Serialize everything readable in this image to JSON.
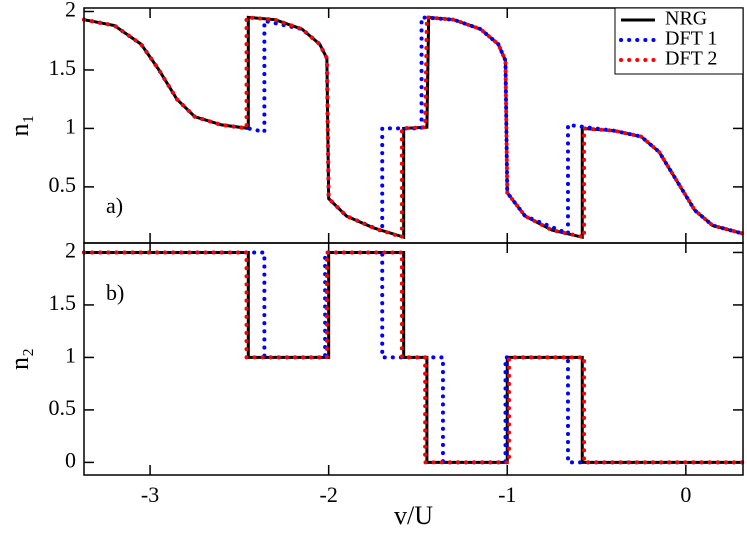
{
  "chart_data": [
    {
      "type": "line",
      "y_label": "n₁",
      "annotation": "a)",
      "legend": "upper right",
      "xlim": [
        -3.37,
        0.32
      ],
      "ylim": [
        0.02,
        2.03
      ],
      "yticks": [
        0.5,
        1,
        1.5,
        2
      ],
      "series": [
        {
          "name": "NRG",
          "color": "#000000",
          "style": "solid",
          "x": [
            -3.37,
            -3.2,
            -3.05,
            -2.95,
            -2.85,
            -2.75,
            -2.6,
            -2.45,
            -2.45,
            -2.3,
            -2.15,
            -2.05,
            -2.01,
            -2.0,
            -1.9,
            -1.75,
            -1.58,
            -1.58,
            -1.45,
            -1.44,
            -1.3,
            -1.15,
            -1.05,
            -1.01,
            -1.0,
            -0.9,
            -0.75,
            -0.58,
            -0.58,
            -0.4,
            -0.25,
            -0.15,
            -0.05,
            0.05,
            0.15,
            0.32
          ],
          "values": [
            1.93,
            1.88,
            1.72,
            1.5,
            1.25,
            1.1,
            1.03,
            1.0,
            1.95,
            1.93,
            1.85,
            1.72,
            1.6,
            0.4,
            0.25,
            0.15,
            0.07,
            1.0,
            1.01,
            1.95,
            1.93,
            1.85,
            1.72,
            1.58,
            0.45,
            0.25,
            0.13,
            0.07,
            1.0,
            0.98,
            0.93,
            0.8,
            0.55,
            0.3,
            0.17,
            0.1
          ]
        },
        {
          "name": "DFT 1",
          "color": "#0000ff",
          "style": "dotted",
          "x": [
            -3.37,
            -3.2,
            -3.05,
            -2.95,
            -2.85,
            -2.75,
            -2.6,
            -2.45,
            -2.36,
            -2.36,
            -2.15,
            -2.05,
            -2.01,
            -2.0,
            -1.9,
            -1.7,
            -1.7,
            -1.48,
            -1.48,
            -1.3,
            -1.15,
            -1.05,
            -1.01,
            -1.0,
            -0.9,
            -0.66,
            -0.66,
            -0.4,
            -0.25,
            -0.15,
            -0.05,
            0.05,
            0.15,
            0.32
          ],
          "values": [
            1.93,
            1.88,
            1.72,
            1.5,
            1.25,
            1.1,
            1.03,
            1.0,
            0.97,
            1.92,
            1.85,
            1.72,
            1.6,
            0.4,
            0.25,
            0.12,
            1.0,
            1.0,
            1.95,
            1.93,
            1.85,
            1.72,
            1.58,
            0.45,
            0.25,
            0.1,
            1.03,
            0.98,
            0.93,
            0.8,
            0.55,
            0.3,
            0.17,
            0.1
          ]
        },
        {
          "name": "DFT 2",
          "color": "#ff0000",
          "style": "dotted",
          "x": [
            -3.37,
            -3.2,
            -3.05,
            -2.95,
            -2.85,
            -2.75,
            -2.6,
            -2.46,
            -2.46,
            -2.3,
            -2.15,
            -2.05,
            -2.01,
            -2.0,
            -1.9,
            -1.75,
            -1.59,
            -1.59,
            -1.46,
            -1.45,
            -1.3,
            -1.15,
            -1.05,
            -1.01,
            -1.0,
            -0.9,
            -0.75,
            -0.57,
            -0.57,
            -0.4,
            -0.25,
            -0.15,
            -0.05,
            0.05,
            0.15,
            0.32
          ],
          "values": [
            1.93,
            1.88,
            1.72,
            1.5,
            1.25,
            1.1,
            1.03,
            1.0,
            1.95,
            1.93,
            1.85,
            1.72,
            1.6,
            0.4,
            0.25,
            0.15,
            0.07,
            1.0,
            1.01,
            1.95,
            1.93,
            1.85,
            1.72,
            1.58,
            0.45,
            0.25,
            0.13,
            0.07,
            1.0,
            0.98,
            0.93,
            0.8,
            0.55,
            0.3,
            0.17,
            0.1
          ]
        }
      ]
    },
    {
      "type": "line",
      "y_label": "n₂",
      "x_label": "v/U",
      "annotation": "b)",
      "xlim": [
        -3.37,
        0.32
      ],
      "ylim": [
        -0.12,
        2.09
      ],
      "xticks": [
        -3,
        -2,
        -1,
        0
      ],
      "yticks": [
        0,
        0.5,
        1,
        1.5,
        2
      ],
      "series": [
        {
          "color": "#000000",
          "style": "solid",
          "x": [
            -3.37,
            -2.45,
            -2.45,
            -2.0,
            -2.0,
            -1.58,
            -1.58,
            -1.45,
            -1.45,
            -1.0,
            -1.0,
            -0.58,
            -0.58,
            0.32
          ],
          "values": [
            2,
            2,
            1,
            1,
            2,
            2,
            1,
            1,
            0,
            0,
            1,
            1,
            0,
            0
          ]
        },
        {
          "color": "#0000ff",
          "style": "dotted",
          "x": [
            -3.37,
            -2.36,
            -2.36,
            -2.02,
            -2.02,
            -1.7,
            -1.7,
            -1.36,
            -1.36,
            -1.01,
            -1.01,
            -0.66,
            -0.66,
            0.32
          ],
          "values": [
            2,
            2,
            1,
            1,
            2,
            2,
            1,
            1,
            0,
            0,
            1,
            1,
            0,
            0
          ]
        },
        {
          "color": "#ff0000",
          "style": "dotted",
          "x": [
            -3.37,
            -2.46,
            -2.46,
            -2.01,
            -2.01,
            -1.59,
            -1.59,
            -1.46,
            -1.46,
            -0.99,
            -0.99,
            -0.57,
            -0.57,
            0.32
          ],
          "values": [
            2,
            2,
            1,
            1,
            2,
            2,
            1,
            1,
            0,
            0,
            1,
            1,
            0,
            0
          ]
        }
      ]
    }
  ]
}
